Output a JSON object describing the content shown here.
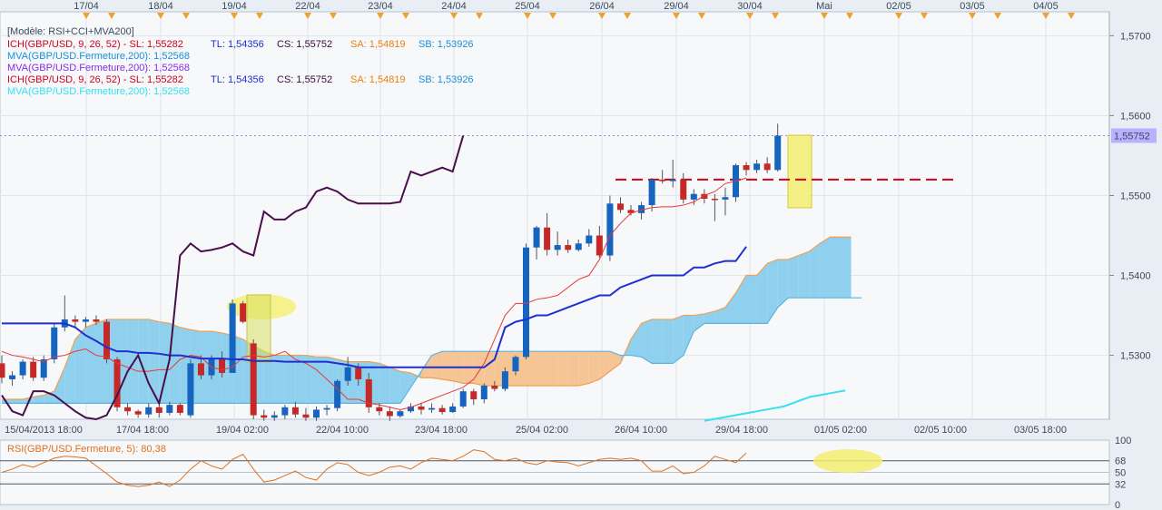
{
  "chart_data": [
    {
      "type": "candlestick",
      "title": "[Modèle: RSI+CCI+MVA200]",
      "top_dates": [
        "17/04",
        "18/04",
        "19/04",
        "22/04",
        "23/04",
        "24/04",
        "25/04",
        "26/04",
        "29/04",
        "30/04",
        "Mai",
        "02/05",
        "03/05",
        "04/05"
      ],
      "bottom_dates": [
        "15/04/2013 18:00",
        "17/04 18:00",
        "19/04 02:00",
        "22/04 10:00",
        "23/04 18:00",
        "25/04 02:00",
        "26/04 10:00",
        "29/04 18:00",
        "01/05 02:00",
        "02/05 10:00",
        "03/05 18:00"
      ],
      "ylim": [
        1.522,
        1.573
      ],
      "y_ticks": [
        "1,5700",
        "1,5600",
        "1,5500",
        "1,5400",
        "1,5300"
      ],
      "last_price_label": "1,55752",
      "legend": [
        {
          "label": "ICH(GBP/USD, 9, 26, 52) -",
          "color": "#d0021b",
          "parts": [
            {
              "text": "ICH(GBP/USD, 9, 26, 52) -  SL: 1,55282",
              "color": "#d0021b"
            },
            {
              "text": "TL: 1,54356",
              "color": "#1f2fd0"
            },
            {
              "text": "CS: 1,55752",
              "color": "#3a0a3a"
            },
            {
              "text": "SA: 1,54819",
              "color": "#e8820f"
            },
            {
              "text": "SB: 1,53926",
              "color": "#1a8fd8"
            }
          ]
        },
        {
          "label": "MVA(GBP/USD.Fermeture,200): 1,52568",
          "color": "#1a8fd8",
          "parts": [
            {
              "text": "MVA(GBP/USD.Fermeture,200): 1,52568",
              "color": "#1a8fd8"
            }
          ]
        },
        {
          "label": "MVA(GBP/USD.Fermeture,200): 1,52568",
          "color": "#8a2be2",
          "parts": [
            {
              "text": "MVA(GBP/USD.Fermeture,200): 1,52568",
              "color": "#8a2be2"
            }
          ]
        },
        {
          "label": "ICH(GBP/USD, 9, 26, 52) -",
          "color": "#d0021b",
          "parts": [
            {
              "text": "ICH(GBP/USD, 9, 26, 52) -  SL: 1,55282",
              "color": "#d0021b"
            },
            {
              "text": "TL: 1,54356",
              "color": "#1f2fd0"
            },
            {
              "text": "CS: 1,55752",
              "color": "#3a0a3a"
            },
            {
              "text": "SA: 1,54819",
              "color": "#e8820f"
            },
            {
              "text": "SB: 1,53926",
              "color": "#1a8fd8"
            }
          ]
        },
        {
          "label": "MVA(GBP/USD.Fermeture,200): 1,52568",
          "color": "#35e0f0",
          "parts": [
            {
              "text": "MVA(GBP/USD.Fermeture,200): 1,52568",
              "color": "#35e0f0"
            }
          ]
        }
      ],
      "candles": [
        [
          1.529,
          1.53,
          1.5265,
          1.5272
        ],
        [
          1.527,
          1.528,
          1.5262,
          1.5275
        ],
        [
          1.5275,
          1.5295,
          1.527,
          1.5292
        ],
        [
          1.5292,
          1.5298,
          1.5268,
          1.5272
        ],
        [
          1.5272,
          1.53,
          1.5268,
          1.5295
        ],
        [
          1.5295,
          1.534,
          1.529,
          1.5335
        ],
        [
          1.5335,
          1.5375,
          1.533,
          1.5345
        ],
        [
          1.5345,
          1.535,
          1.5335,
          1.5342
        ],
        [
          1.5342,
          1.5348,
          1.5335,
          1.5345
        ],
        [
          1.5345,
          1.535,
          1.5338,
          1.5342
        ],
        [
          1.5342,
          1.5345,
          1.529,
          1.5295
        ],
        [
          1.5295,
          1.5298,
          1.523,
          1.5235
        ],
        [
          1.5235,
          1.524,
          1.5225,
          1.523
        ],
        [
          1.523,
          1.5232,
          1.5222,
          1.5226
        ],
        [
          1.5226,
          1.524,
          1.5222,
          1.5235
        ],
        [
          1.5235,
          1.5238,
          1.5222,
          1.5228
        ],
        [
          1.5228,
          1.5242,
          1.5225,
          1.5238
        ],
        [
          1.5238,
          1.524,
          1.5225,
          1.5228
        ],
        [
          1.5225,
          1.5295,
          1.5222,
          1.529
        ],
        [
          1.529,
          1.53,
          1.527,
          1.5275
        ],
        [
          1.5275,
          1.53,
          1.527,
          1.5295
        ],
        [
          1.5295,
          1.5305,
          1.5272,
          1.5278
        ],
        [
          1.5278,
          1.537,
          1.5278,
          1.5365
        ],
        [
          1.5365,
          1.5368,
          1.534,
          1.5342
        ],
        [
          1.5315,
          1.532,
          1.522,
          1.5225
        ],
        [
          1.5225,
          1.5232,
          1.5218,
          1.5222
        ],
        [
          1.5222,
          1.523,
          1.5218,
          1.5225
        ],
        [
          1.5225,
          1.5238,
          1.522,
          1.5235
        ],
        [
          1.5235,
          1.5242,
          1.5222,
          1.5226
        ],
        [
          1.5226,
          1.5234,
          1.5218,
          1.5222
        ],
        [
          1.5222,
          1.5236,
          1.5218,
          1.5232
        ],
        [
          1.5232,
          1.5238,
          1.5225,
          1.5234
        ],
        [
          1.5234,
          1.527,
          1.523,
          1.5268
        ],
        [
          1.5268,
          1.5298,
          1.5262,
          1.5285
        ],
        [
          1.5285,
          1.529,
          1.5262,
          1.527
        ],
        [
          1.527,
          1.5278,
          1.5228,
          1.5235
        ],
        [
          1.5235,
          1.524,
          1.5225,
          1.523
        ],
        [
          1.523,
          1.5236,
          1.5218,
          1.5224
        ],
        [
          1.5224,
          1.5232,
          1.5222,
          1.523
        ],
        [
          1.523,
          1.524,
          1.5228,
          1.5236
        ],
        [
          1.5236,
          1.524,
          1.5226,
          1.5232
        ],
        [
          1.5232,
          1.524,
          1.5228,
          1.5234
        ],
        [
          1.5234,
          1.5238,
          1.5226,
          1.5229
        ],
        [
          1.5229,
          1.524,
          1.5228,
          1.5236
        ],
        [
          1.5236,
          1.5258,
          1.5234,
          1.5255
        ],
        [
          1.5255,
          1.5258,
          1.5238,
          1.5245
        ],
        [
          1.5245,
          1.5265,
          1.524,
          1.5262
        ],
        [
          1.5262,
          1.5268,
          1.5255,
          1.5258
        ],
        [
          1.5258,
          1.5285,
          1.5255,
          1.528
        ],
        [
          1.528,
          1.53,
          1.5275,
          1.5298
        ],
        [
          1.5298,
          1.544,
          1.5295,
          1.5435
        ],
        [
          1.5435,
          1.5462,
          1.542,
          1.546
        ],
        [
          1.546,
          1.5478,
          1.5425,
          1.5432
        ],
        [
          1.5432,
          1.5455,
          1.5425,
          1.5438
        ],
        [
          1.5438,
          1.5445,
          1.5428,
          1.5432
        ],
        [
          1.5432,
          1.5445,
          1.543,
          1.544
        ],
        [
          1.544,
          1.5458,
          1.5436,
          1.545
        ],
        [
          1.545,
          1.5462,
          1.5422,
          1.5425
        ],
        [
          1.5425,
          1.55,
          1.5418,
          1.549
        ],
        [
          1.549,
          1.5498,
          1.5478,
          1.5482
        ],
        [
          1.5482,
          1.5488,
          1.5475,
          1.5478
        ],
        [
          1.5478,
          1.5492,
          1.547,
          1.5488
        ],
        [
          1.5488,
          1.5522,
          1.548,
          1.552
        ],
        [
          1.552,
          1.5532,
          1.5515,
          1.5518
        ],
        [
          1.5518,
          1.5545,
          1.551,
          1.552
        ],
        [
          1.552,
          1.5528,
          1.549,
          1.5495
        ],
        [
          1.5495,
          1.5508,
          1.5488,
          1.5502
        ],
        [
          1.5502,
          1.5508,
          1.549,
          1.5496
        ],
        [
          1.5496,
          1.5502,
          1.5468,
          1.5495
        ],
        [
          1.5495,
          1.551,
          1.5475,
          1.5498
        ],
        [
          1.5498,
          1.554,
          1.5492,
          1.5538
        ],
        [
          1.5538,
          1.5542,
          1.5525,
          1.5532
        ],
        [
          1.5532,
          1.5545,
          1.5528,
          1.554
        ],
        [
          1.554,
          1.5548,
          1.5528,
          1.5532
        ],
        [
          1.5532,
          1.559,
          1.553,
          1.5575
        ]
      ],
      "tenkan": [
        1.5305,
        1.53,
        1.5298,
        1.5295,
        1.5292,
        1.5298,
        1.53,
        1.5305,
        1.5308,
        1.53,
        1.5298,
        1.529,
        1.5285,
        1.528,
        1.528,
        1.5282,
        1.5282,
        1.5295,
        1.53,
        1.5298,
        1.5285,
        1.5282,
        1.5285,
        1.5298,
        1.53,
        1.5298,
        1.53,
        1.5305,
        1.5295,
        1.529,
        1.5282,
        1.527,
        1.5258,
        1.5245,
        1.5245,
        1.524,
        1.5238,
        1.5235,
        1.5232,
        1.5235,
        1.524,
        1.5245,
        1.525,
        1.5255,
        1.526,
        1.527,
        1.529,
        1.532,
        1.535,
        1.5365,
        1.5365,
        1.537,
        1.5372,
        1.5375,
        1.5385,
        1.5395,
        1.54,
        1.542,
        1.545,
        1.5465,
        1.5478,
        1.5482,
        1.5485,
        1.5486,
        1.5486,
        1.5488,
        1.5492,
        1.55,
        1.5505,
        1.5515,
        1.5518,
        1.5522
      ],
      "kijun": [
        1.534,
        1.534,
        1.534,
        1.534,
        1.534,
        1.534,
        1.534,
        1.5335,
        1.5325,
        1.5318,
        1.531,
        1.5305,
        1.5305,
        1.5303,
        1.5303,
        1.5302,
        1.53,
        1.53,
        1.5298,
        1.5296,
        1.5296,
        1.5296,
        1.5295,
        1.5295,
        1.5293,
        1.5293,
        1.5293,
        1.5292,
        1.5292,
        1.5292,
        1.5292,
        1.5292,
        1.529,
        1.5288,
        1.5285,
        1.5285,
        1.5285,
        1.5285,
        1.5285,
        1.5285,
        1.5285,
        1.5285,
        1.5285,
        1.5285,
        1.5285,
        1.5285,
        1.5285,
        1.5295,
        1.5335,
        1.5342,
        1.5345,
        1.535,
        1.535,
        1.5355,
        1.536,
        1.5365,
        1.537,
        1.5375,
        1.5375,
        1.5385,
        1.539,
        1.5395,
        1.54,
        1.54,
        1.54,
        1.54,
        1.541,
        1.541,
        1.5415,
        1.5418,
        1.5418,
        1.5436
      ],
      "chikou": [
        1.525,
        1.523,
        1.5225,
        1.5255,
        1.5255,
        1.525,
        1.524,
        1.523,
        1.5222,
        1.522,
        1.5225,
        1.525,
        1.528,
        1.53,
        1.5265,
        1.524,
        1.5295,
        1.5425,
        1.544,
        1.543,
        1.5432,
        1.5435,
        1.544,
        1.543,
        1.5425,
        1.548,
        1.547,
        1.547,
        1.548,
        1.5485,
        1.5505,
        1.551,
        1.5505,
        1.5495,
        1.549,
        1.549,
        1.549,
        1.549,
        1.5492,
        1.553,
        1.5525,
        1.553,
        1.5535,
        1.553,
        1.5575
      ],
      "senkou_a": [
        1.5245,
        1.5245,
        1.5245,
        1.5248,
        1.525,
        1.5255,
        1.5285,
        1.532,
        1.5335,
        1.534,
        1.5345,
        1.5345,
        1.5345,
        1.5345,
        1.5345,
        1.5342,
        1.534,
        1.5335,
        1.5332,
        1.533,
        1.533,
        1.5328,
        1.5325,
        1.532,
        1.5312,
        1.5305,
        1.53,
        1.53,
        1.53,
        1.53,
        1.5298,
        1.5298,
        1.5295,
        1.5292,
        1.5292,
        1.5292,
        1.529,
        1.5285,
        1.528,
        1.5278,
        1.5272,
        1.5272,
        1.527,
        1.5268,
        1.5265,
        1.5265,
        1.5262,
        1.5262,
        1.5262,
        1.5262,
        1.5262,
        1.5262,
        1.5262,
        1.5262,
        1.5262,
        1.5262,
        1.5265,
        1.527,
        1.528,
        1.529,
        1.532,
        1.534,
        1.5345,
        1.5345,
        1.5345,
        1.535,
        1.535,
        1.5352,
        1.5355,
        1.536,
        1.5378,
        1.54,
        1.54,
        1.5415,
        1.542,
        1.542,
        1.5425,
        1.543,
        1.544,
        1.5448,
        1.5448,
        1.5448
      ],
      "senkou_b": [
        1.524,
        1.524,
        1.524,
        1.524,
        1.524,
        1.524,
        1.524,
        1.524,
        1.524,
        1.524,
        1.524,
        1.524,
        1.524,
        1.524,
        1.524,
        1.524,
        1.524,
        1.524,
        1.524,
        1.524,
        1.524,
        1.524,
        1.524,
        1.524,
        1.524,
        1.524,
        1.524,
        1.524,
        1.524,
        1.524,
        1.524,
        1.524,
        1.524,
        1.524,
        1.524,
        1.524,
        1.524,
        1.524,
        1.524,
        1.526,
        1.528,
        1.53,
        1.5305,
        1.5305,
        1.5305,
        1.5305,
        1.5305,
        1.5305,
        1.5305,
        1.5305,
        1.5305,
        1.5305,
        1.5305,
        1.5305,
        1.5305,
        1.5305,
        1.5305,
        1.5305,
        1.5305,
        1.53,
        1.53,
        1.5298,
        1.529,
        1.529,
        1.529,
        1.53,
        1.533,
        1.534,
        1.534,
        1.534,
        1.534,
        1.534,
        1.534,
        1.534,
        1.536,
        1.5372,
        1.5372,
        1.5372,
        1.5372,
        1.5372,
        1.5372,
        1.5372,
        1.5372
      ],
      "mva200": [
        1.5218,
        1.522,
        1.5222,
        1.5224,
        1.5226,
        1.5228,
        1.523,
        1.5232,
        1.5234,
        1.5236,
        1.524,
        1.5244,
        1.5248,
        1.525,
        1.5252,
        1.5254,
        1.5256
      ],
      "resistance": 1.552,
      "annotation_boxes": 2
    },
    {
      "type": "line",
      "title": "RSI(GBP/USD.Fermeture, 5): 80,38",
      "ylim": [
        0,
        100
      ],
      "y_ticks": [
        "100",
        "68",
        "50",
        "32",
        "0"
      ],
      "values": [
        50,
        55,
        62,
        58,
        65,
        72,
        75,
        74,
        72,
        60,
        48,
        35,
        30,
        28,
        30,
        35,
        28,
        38,
        55,
        68,
        60,
        55,
        70,
        78,
        55,
        35,
        38,
        45,
        52,
        42,
        38,
        55,
        65,
        62,
        50,
        45,
        50,
        58,
        60,
        55,
        65,
        72,
        70,
        68,
        75,
        85,
        82,
        70,
        68,
        72,
        65,
        62,
        68,
        66,
        65,
        60,
        65,
        70,
        72,
        70,
        72,
        68,
        52,
        52,
        60,
        48,
        50,
        60,
        75,
        70,
        65,
        80
      ]
    }
  ]
}
